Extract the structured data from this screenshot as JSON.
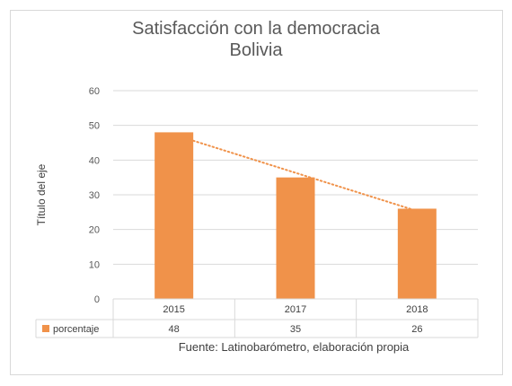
{
  "chart_data": {
    "type": "bar",
    "title": "Satisfacción con la democracia",
    "subtitle": "Bolivia",
    "categories": [
      "2015",
      "2017",
      "2018"
    ],
    "series": [
      {
        "name": "porcentaje",
        "values": [
          48,
          35,
          26
        ],
        "color": "#F0924A"
      }
    ],
    "ylabel": "Título del eje",
    "ylim": [
      0,
      60
    ],
    "yticks": [
      0,
      10,
      20,
      30,
      40,
      50,
      60
    ],
    "grid": true,
    "trendline": {
      "type": "linear",
      "style": "dotted",
      "color": "#F0924A"
    },
    "data_table": true,
    "source_note": "Fuente: Latinobarómetro, elaboración propia"
  }
}
